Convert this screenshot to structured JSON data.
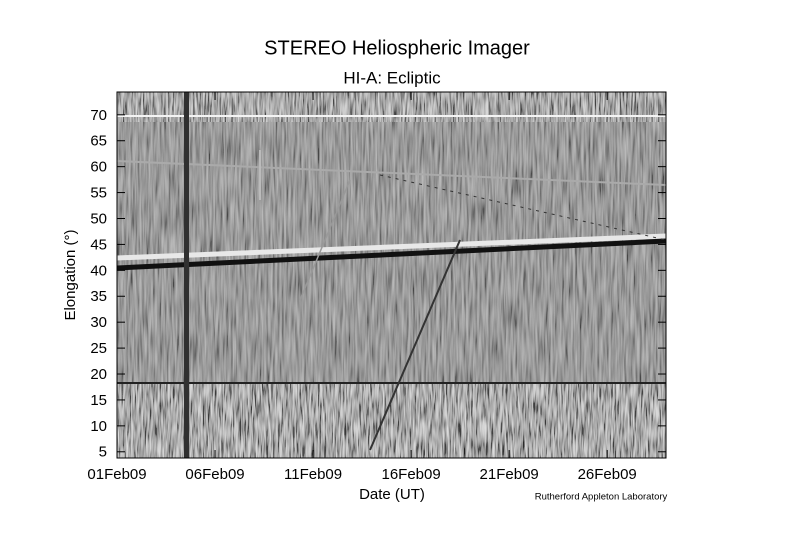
{
  "chart_data": {
    "type": "jmap",
    "title": "STEREO Heliospheric Imager",
    "subtitle": "HI-A: Ecliptic",
    "y_label": "Elongation (°)",
    "x_label": "Date (UT)",
    "credit": "Rutherford Appleton Laboratory",
    "xlim": [
      "2009-02-01",
      "2009-03-01"
    ],
    "xticks": [
      {
        "value": "2009-02-01",
        "label": "01Feb09"
      },
      {
        "value": "2009-02-06",
        "label": "06Feb09"
      },
      {
        "value": "2009-02-11",
        "label": "11Feb09"
      },
      {
        "value": "2009-02-16",
        "label": "16Feb09"
      },
      {
        "value": "2009-02-21",
        "label": "21Feb09"
      },
      {
        "value": "2009-02-26",
        "label": "26Feb09"
      }
    ],
    "ylim": [
      3.8,
      74.4
    ],
    "yticks": [
      5,
      10,
      15,
      20,
      25,
      30,
      35,
      40,
      45,
      50,
      55,
      60,
      65,
      70
    ]
  }
}
